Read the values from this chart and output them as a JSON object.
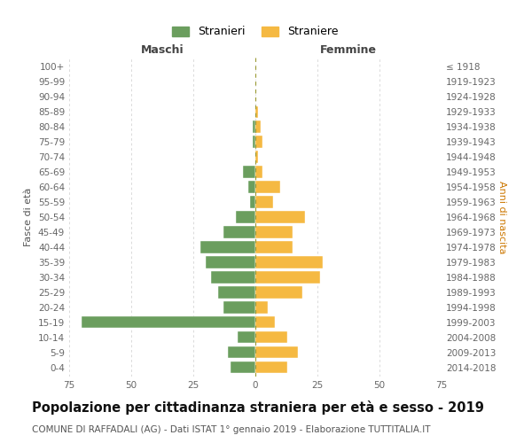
{
  "age_groups": [
    "0-4",
    "5-9",
    "10-14",
    "15-19",
    "20-24",
    "25-29",
    "30-34",
    "35-39",
    "40-44",
    "45-49",
    "50-54",
    "55-59",
    "60-64",
    "65-69",
    "70-74",
    "75-79",
    "80-84",
    "85-89",
    "90-94",
    "95-99",
    "100+"
  ],
  "birth_years": [
    "2014-2018",
    "2009-2013",
    "2004-2008",
    "1999-2003",
    "1994-1998",
    "1989-1993",
    "1984-1988",
    "1979-1983",
    "1974-1978",
    "1969-1973",
    "1964-1968",
    "1959-1963",
    "1954-1958",
    "1949-1953",
    "1944-1948",
    "1939-1943",
    "1934-1938",
    "1929-1933",
    "1924-1928",
    "1919-1923",
    "≤ 1918"
  ],
  "stranieri": [
    10,
    11,
    7,
    70,
    13,
    15,
    18,
    20,
    22,
    13,
    8,
    2,
    3,
    5,
    0,
    1,
    1,
    0,
    0,
    0,
    0
  ],
  "straniere": [
    13,
    17,
    13,
    8,
    5,
    19,
    26,
    27,
    15,
    15,
    20,
    7,
    10,
    3,
    1,
    3,
    2,
    1,
    0,
    0,
    0
  ],
  "color_stranieri": "#6b9e5e",
  "color_straniere": "#f5b942",
  "xlim": 75,
  "title": "Popolazione per cittadinanza straniera per età e sesso - 2019",
  "subtitle": "COMUNE DI RAFFADALI (AG) - Dati ISTAT 1° gennaio 2019 - Elaborazione TUTTITALIA.IT",
  "ylabel_left": "Fasce di età",
  "ylabel_right": "Anni di nascita",
  "xlabel_left": "Maschi",
  "xlabel_right": "Femmine",
  "legend_stranieri": "Stranieri",
  "legend_straniere": "Straniere",
  "bg_color": "#ffffff",
  "grid_color": "#cccccc",
  "title_fontsize": 10.5,
  "subtitle_fontsize": 7.5,
  "tick_fontsize": 7.5,
  "bar_height": 0.78
}
